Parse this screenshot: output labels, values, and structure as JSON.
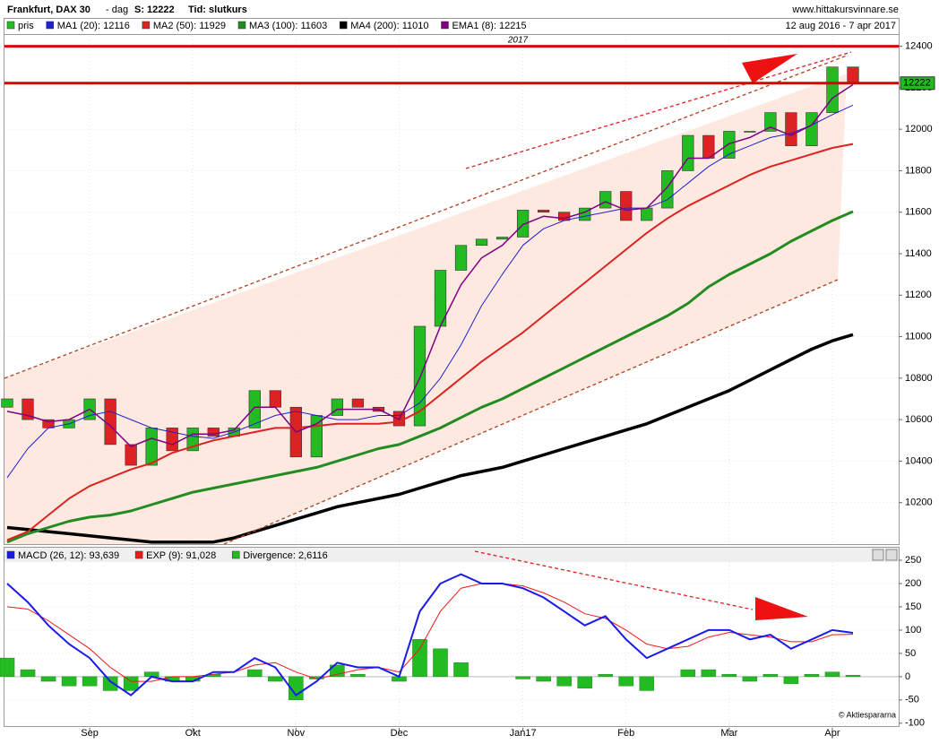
{
  "chart_data": {
    "type": "candlestick",
    "title": "Frankfurt, DAX 30",
    "period": "- dag",
    "last": "S: 12222",
    "time_basis": "Tid: slutkurs",
    "source": "www.hittakursvinnare.se",
    "date_range": "12 aug 2016 - 7 apr 2017",
    "year_label": "2017",
    "copyright": "© Aktiespararna",
    "categories": [
      null,
      null,
      null,
      null,
      "Sep",
      null,
      null,
      null,
      null,
      "Okt",
      null,
      null,
      null,
      null,
      "Nov",
      null,
      null,
      null,
      null,
      "Dec",
      null,
      null,
      null,
      null,
      null,
      "Jan17",
      null,
      null,
      null,
      null,
      "Feb",
      null,
      null,
      null,
      null,
      "Mar",
      null,
      null,
      null,
      null,
      "Apr",
      null
    ],
    "ylim": [
      10000,
      12450
    ],
    "yticks": [
      10200,
      10400,
      10600,
      10800,
      11000,
      11200,
      11400,
      11600,
      11800,
      12000,
      12200,
      12400
    ],
    "grid": true,
    "price_marker": 12222,
    "hlines": [
      {
        "value": 12400,
        "color": "#dd0000"
      },
      {
        "value": 12222,
        "color": "#dd0000"
      }
    ],
    "up_color": "#22bb22",
    "down_color": "#dd2222",
    "series": [
      {
        "name": "pris",
        "color": "#22bb22",
        "open": [
          10660,
          10700,
          10600,
          10560,
          10600,
          10700,
          10480,
          10380,
          10560,
          10450,
          10560,
          10520,
          10560,
          10740,
          10660,
          10420,
          10620,
          10700,
          10660,
          10640,
          10570,
          11050,
          11320,
          11440,
          11470,
          11480,
          11610,
          11600,
          11560,
          11620,
          11700,
          11560,
          11620,
          11800,
          11970,
          11860,
          11990,
          11990,
          12080,
          11920,
          12080,
          12300
        ],
        "values": [
          10700,
          10600,
          10560,
          10600,
          10700,
          10480,
          10380,
          10560,
          10450,
          10560,
          10520,
          10560,
          10740,
          10660,
          10420,
          10620,
          10700,
          10660,
          10640,
          10570,
          11050,
          11320,
          11440,
          11470,
          11480,
          11610,
          11600,
          11560,
          11620,
          11700,
          11560,
          11620,
          11800,
          11970,
          11860,
          11990,
          11990,
          12080,
          11920,
          12080,
          12300,
          12222
        ]
      },
      {
        "name": "MA1 (20): 12116",
        "color": "#2222cc",
        "values": [
          10320,
          10460,
          10560,
          10580,
          10620,
          10640,
          10600,
          10560,
          10540,
          10520,
          10510,
          10540,
          10580,
          10620,
          10640,
          10620,
          10600,
          10600,
          10620,
          10620,
          10680,
          10800,
          10960,
          11150,
          11300,
          11440,
          11520,
          11560,
          11580,
          11600,
          11620,
          11620,
          11660,
          11740,
          11820,
          11880,
          11920,
          11960,
          11980,
          12020,
          12070,
          12116
        ]
      },
      {
        "name": "MA2 (50): 11929",
        "color": "#dd2222",
        "values": [
          10020,
          10060,
          10140,
          10220,
          10280,
          10320,
          10360,
          10390,
          10440,
          10470,
          10500,
          10520,
          10540,
          10560,
          10560,
          10570,
          10580,
          10580,
          10580,
          10590,
          10640,
          10720,
          10800,
          10880,
          10950,
          11020,
          11100,
          11180,
          11260,
          11340,
          11420,
          11500,
          11570,
          11630,
          11680,
          11730,
          11780,
          11820,
          11850,
          11880,
          11910,
          11929
        ]
      },
      {
        "name": "MA3 (100): 11603",
        "color": "#228b22",
        "values": [
          10010,
          10050,
          10080,
          10110,
          10130,
          10140,
          10160,
          10190,
          10220,
          10250,
          10270,
          10290,
          10310,
          10330,
          10350,
          10370,
          10400,
          10430,
          10460,
          10480,
          10520,
          10560,
          10610,
          10660,
          10700,
          10750,
          10800,
          10850,
          10900,
          10950,
          11000,
          11050,
          11100,
          11160,
          11240,
          11300,
          11350,
          11400,
          11460,
          11510,
          11560,
          11603
        ]
      },
      {
        "name": "MA4 (200): 11010",
        "color": "#000000",
        "values": [
          10080,
          10070,
          10060,
          10050,
          10040,
          10030,
          10020,
          10010,
          10010,
          10010,
          10010,
          10030,
          10060,
          10090,
          10120,
          10150,
          10180,
          10200,
          10220,
          10240,
          10270,
          10300,
          10330,
          10350,
          10370,
          10400,
          10430,
          10460,
          10490,
          10520,
          10550,
          10580,
          10620,
          10660,
          10700,
          10740,
          10790,
          10840,
          10890,
          10940,
          10980,
          11010
        ]
      },
      {
        "name": "EMA1 (8): 12215",
        "color": "#800080",
        "values": [
          10640,
          10620,
          10590,
          10600,
          10650,
          10570,
          10470,
          10510,
          10480,
          10530,
          10530,
          10550,
          10660,
          10660,
          10540,
          10580,
          10650,
          10650,
          10650,
          10600,
          10800,
          11050,
          11250,
          11380,
          11440,
          11540,
          11580,
          11570,
          11600,
          11650,
          11610,
          11620,
          11720,
          11860,
          11860,
          11930,
          11960,
          12010,
          11970,
          12020,
          12150,
          12215
        ]
      }
    ],
    "lower_panel": {
      "type": "macd",
      "ylim": [
        -110,
        275
      ],
      "yticks": [
        -100,
        -50,
        0,
        50,
        100,
        150,
        200,
        250
      ],
      "series": [
        {
          "name": "MACD (26, 12): 93,639",
          "color": "#1a1aee",
          "values": [
            200,
            160,
            110,
            70,
            40,
            -10,
            -40,
            0,
            -10,
            -10,
            10,
            10,
            40,
            20,
            -40,
            -10,
            30,
            20,
            20,
            0,
            140,
            200,
            220,
            200,
            200,
            190,
            170,
            140,
            110,
            130,
            80,
            40,
            60,
            80,
            100,
            100,
            80,
            90,
            60,
            80,
            100,
            94
          ]
        },
        {
          "name": "EXP (9): 91,028",
          "color": "#ee1a1a",
          "values": [
            150,
            145,
            120,
            90,
            60,
            20,
            -10,
            -10,
            0,
            0,
            5,
            10,
            25,
            30,
            10,
            -5,
            5,
            15,
            20,
            10,
            60,
            140,
            190,
            200,
            200,
            195,
            180,
            160,
            135,
            125,
            100,
            70,
            60,
            65,
            85,
            95,
            90,
            85,
            75,
            75,
            90,
            91
          ]
        },
        {
          "name": "Divergence: 2,6116",
          "color": "#22bb22",
          "values": [
            40,
            15,
            -10,
            -20,
            -20,
            -30,
            -30,
            10,
            -10,
            -10,
            5,
            0,
            15,
            -10,
            -50,
            -5,
            25,
            5,
            0,
            -10,
            80,
            60,
            30,
            0,
            0,
            -5,
            -10,
            -20,
            -25,
            5,
            -20,
            -30,
            0,
            15,
            15,
            5,
            -10,
            5,
            -15,
            5,
            10,
            3
          ]
        }
      ]
    }
  }
}
